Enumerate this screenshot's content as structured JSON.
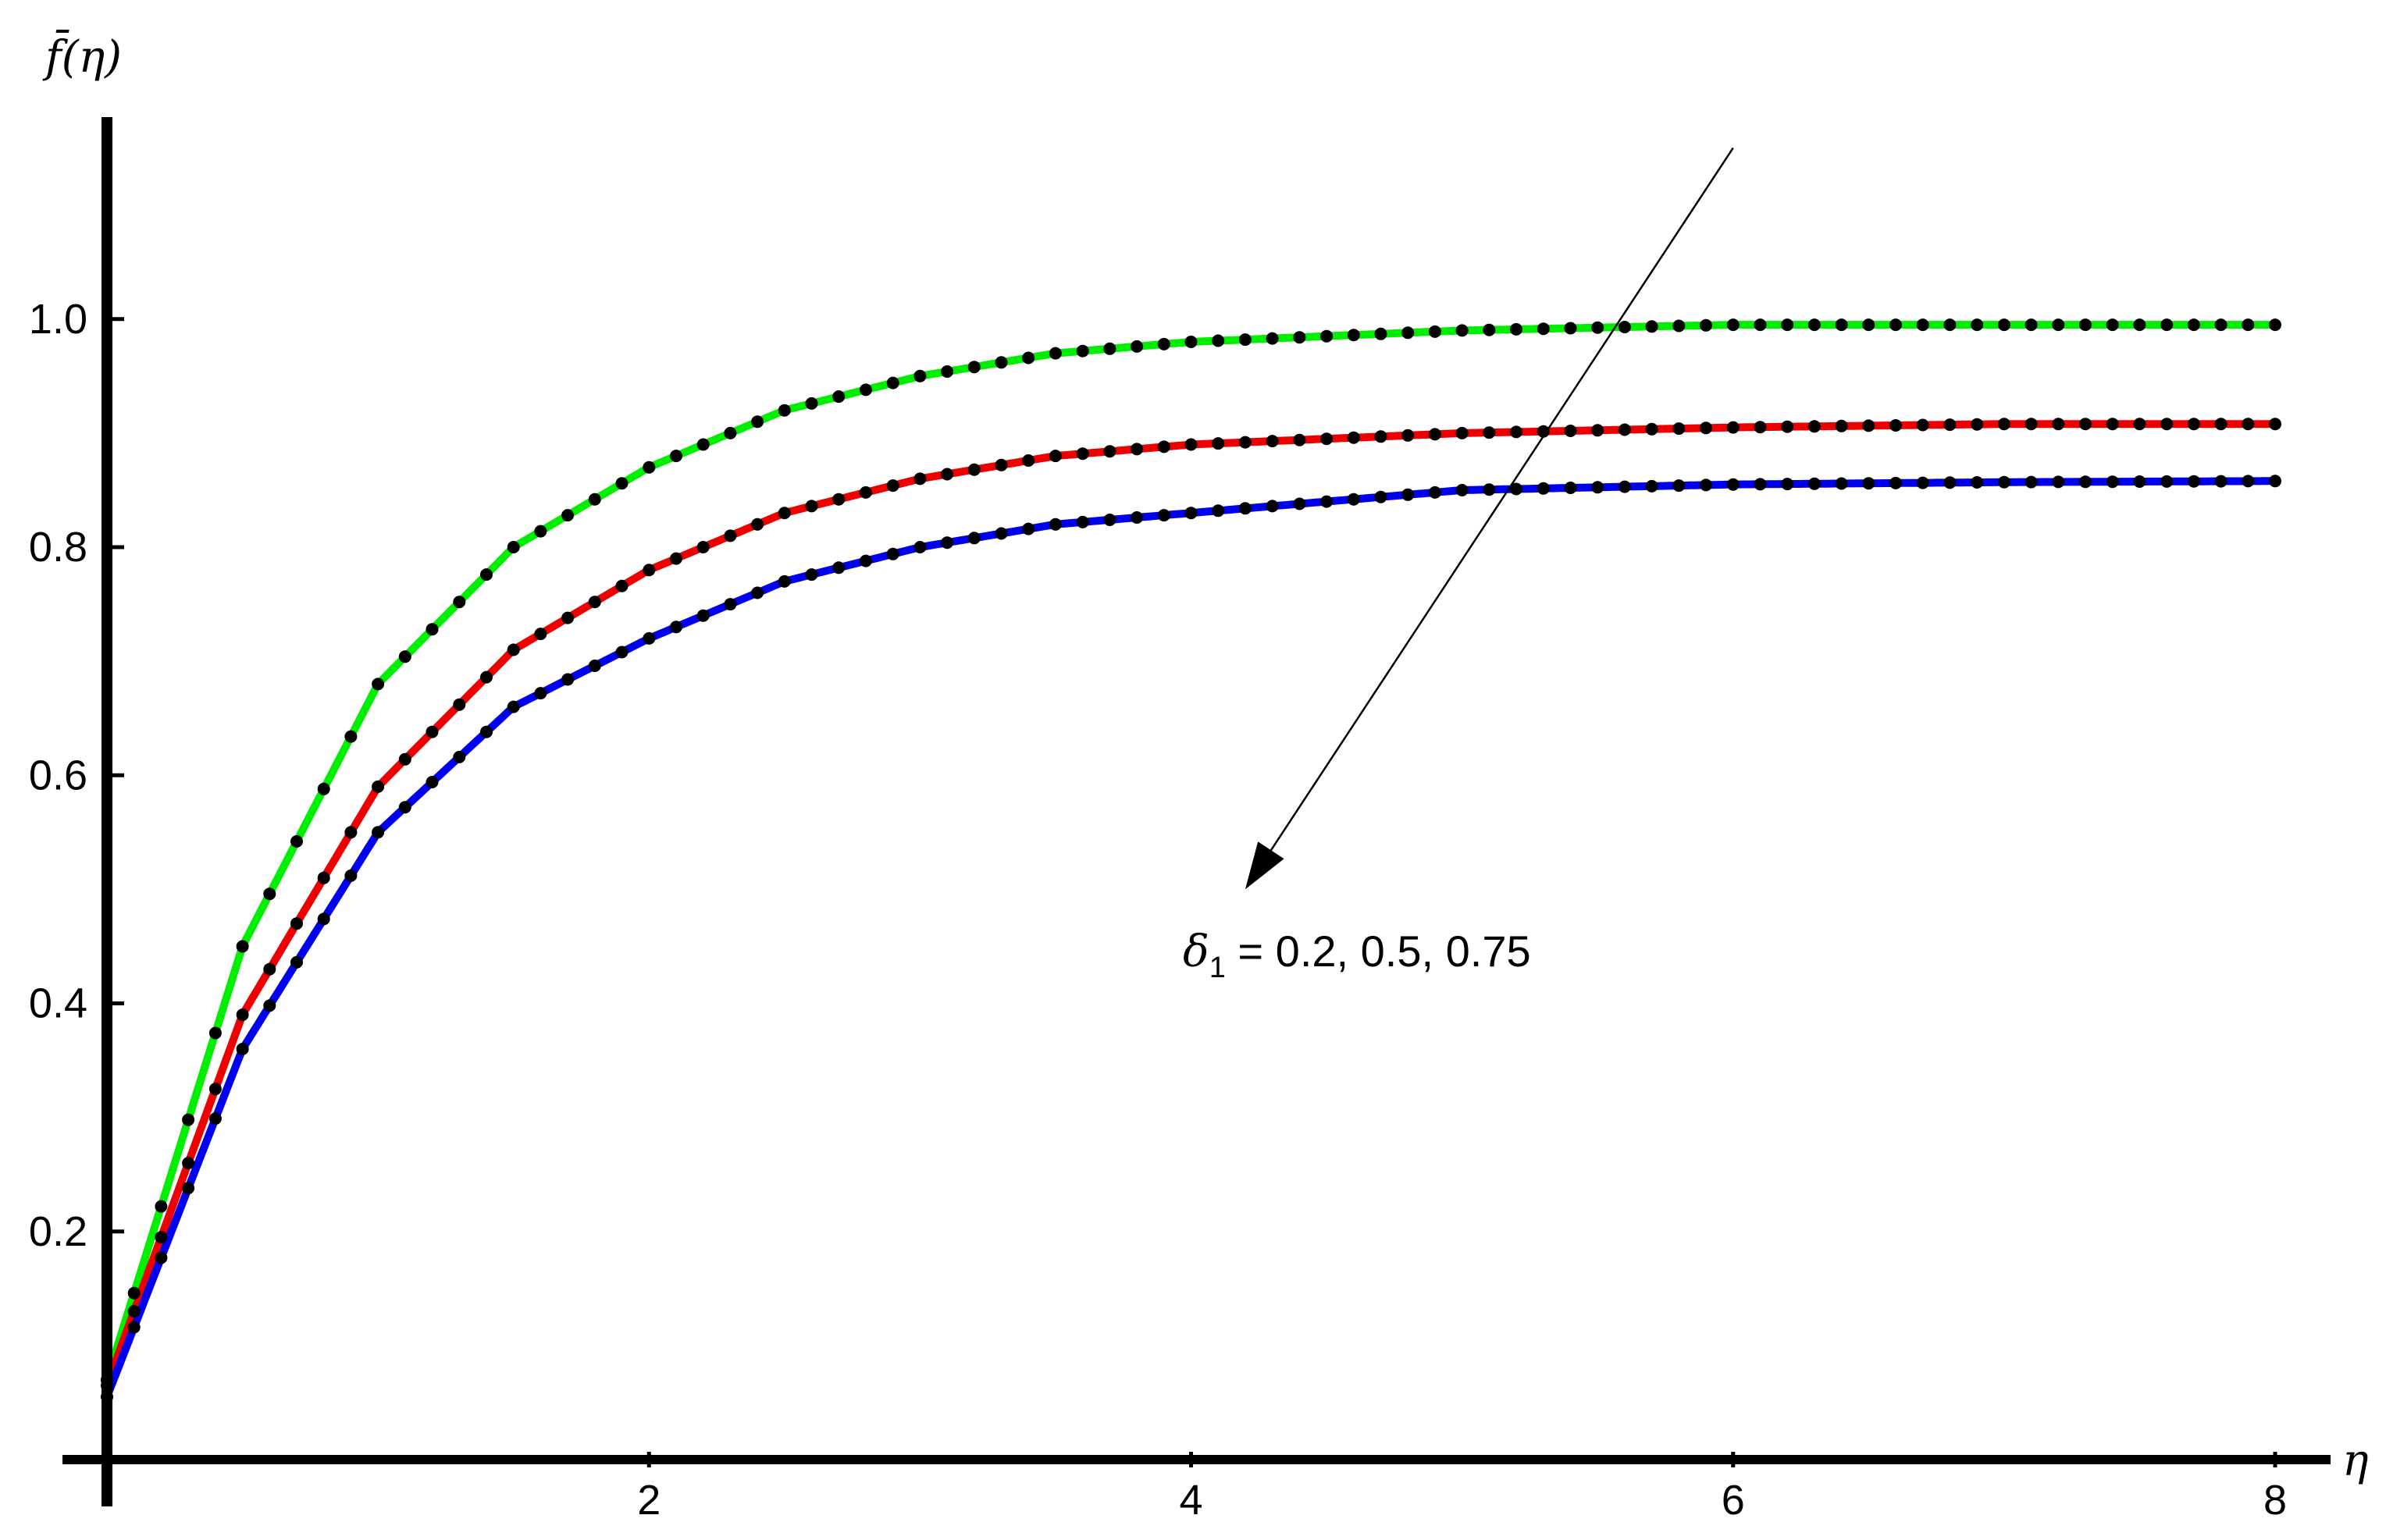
{
  "chart_data": {
    "type": "line",
    "xlabel": "η",
    "ylabel": "f̄(η)",
    "xlim": [
      0,
      8
    ],
    "ylim": [
      0,
      1.15
    ],
    "x_ticks": [
      2,
      4,
      6,
      8
    ],
    "y_ticks": [
      0.2,
      0.4,
      0.6,
      0.8,
      1.0
    ],
    "x_tick_labels": [
      "2",
      "4",
      "6",
      "8"
    ],
    "y_tick_labels": [
      "0.2",
      "0.4",
      "0.6",
      "0.8",
      "1.0"
    ],
    "grid": false,
    "annotation": {
      "text_symbol": "δ",
      "text_subscript": "1",
      "text_values": " = 0.2, 0.5, 0.75",
      "arrow_from": [
        6.0,
        1.15
      ],
      "arrow_to": [
        4.2,
        0.5
      ]
    },
    "series": [
      {
        "color": "#00ee00",
        "marker_color": "#000000",
        "x": [
          0,
          0.5,
          1,
          1.5,
          2,
          2.5,
          3,
          3.5,
          4,
          5,
          6,
          7,
          8
        ],
        "values": [
          0.07,
          0.45,
          0.68,
          0.8,
          0.87,
          0.92,
          0.95,
          0.97,
          0.98,
          0.99,
          0.995,
          0.995,
          0.995
        ]
      },
      {
        "color": "#ee0000",
        "marker_color": "#000000",
        "x": [
          0,
          0.5,
          1,
          1.5,
          2,
          2.5,
          3,
          3.5,
          4,
          5,
          6,
          7,
          8
        ],
        "values": [
          0.065,
          0.39,
          0.59,
          0.71,
          0.78,
          0.83,
          0.86,
          0.88,
          0.89,
          0.9,
          0.905,
          0.908,
          0.908
        ]
      },
      {
        "color": "#0000ee",
        "marker_color": "#000000",
        "x": [
          0,
          0.5,
          1,
          1.5,
          2,
          2.5,
          3,
          3.5,
          4,
          5,
          6,
          7,
          8
        ],
        "values": [
          0.055,
          0.36,
          0.55,
          0.66,
          0.72,
          0.77,
          0.8,
          0.82,
          0.83,
          0.85,
          0.855,
          0.857,
          0.858
        ]
      }
    ]
  }
}
